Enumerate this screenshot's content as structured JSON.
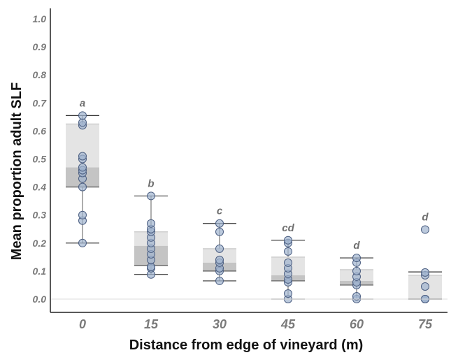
{
  "chart_data": {
    "type": "box",
    "title": "",
    "xlabel": "Distance from edge of vineyard (m)",
    "ylabel": "Mean proportion adult SLF",
    "ylim": [
      0,
      1.0
    ],
    "y_ticks": [
      "0.0",
      "0.1",
      "0.2",
      "0.3",
      "0.4",
      "0.5",
      "0.6",
      "0.7",
      "0.8",
      "0.9",
      "1.0"
    ],
    "grid": false,
    "colors": {
      "box_outer": "#e4e4e4",
      "box_inner": "#c4c4c4",
      "median": "#b8b8b8",
      "point_fill": "#9fb3cf",
      "point_stroke": "#4a5d80",
      "whisker": "#333333"
    },
    "categories": [
      "0",
      "15",
      "30",
      "45",
      "60",
      "75"
    ],
    "groups": [
      {
        "category": "0",
        "letter": "a",
        "min": 0.2,
        "q1": 0.4,
        "median": 0.47,
        "q3": 0.625,
        "max": 0.655,
        "points": [
          0.2,
          0.28,
          0.3,
          0.4,
          0.43,
          0.45,
          0.46,
          0.47,
          0.5,
          0.51,
          0.62,
          0.63,
          0.655
        ]
      },
      {
        "category": "15",
        "letter": "b",
        "min": 0.088,
        "q1": 0.12,
        "median": 0.19,
        "q3": 0.24,
        "max": 0.368,
        "points": [
          0.088,
          0.11,
          0.115,
          0.14,
          0.16,
          0.18,
          0.2,
          0.22,
          0.24,
          0.25,
          0.27,
          0.368
        ]
      },
      {
        "category": "30",
        "letter": "c",
        "min": 0.065,
        "q1": 0.1,
        "median": 0.13,
        "q3": 0.18,
        "max": 0.27,
        "points": [
          0.065,
          0.1,
          0.11,
          0.13,
          0.14,
          0.18,
          0.24,
          0.27
        ]
      },
      {
        "category": "45",
        "letter": "cd",
        "min": 0.0,
        "q1": 0.065,
        "median": 0.085,
        "q3": 0.15,
        "max": 0.21,
        "points": [
          0.0,
          0.02,
          0.06,
          0.07,
          0.09,
          0.11,
          0.13,
          0.17,
          0.2,
          0.21
        ]
      },
      {
        "category": "60",
        "letter": "d",
        "min": 0.0,
        "q1": 0.05,
        "median": 0.065,
        "q3": 0.105,
        "max": 0.147,
        "points": [
          0.0,
          0.01,
          0.05,
          0.06,
          0.08,
          0.1,
          0.13,
          0.147
        ]
      },
      {
        "category": "75",
        "letter": "d",
        "min": 0.0,
        "q1": 0.0,
        "median": 0.0,
        "q3": 0.085,
        "max": 0.097,
        "points": [
          0.0,
          0.0,
          0.0,
          0.045,
          0.085,
          0.095,
          0.248
        ]
      }
    ]
  }
}
